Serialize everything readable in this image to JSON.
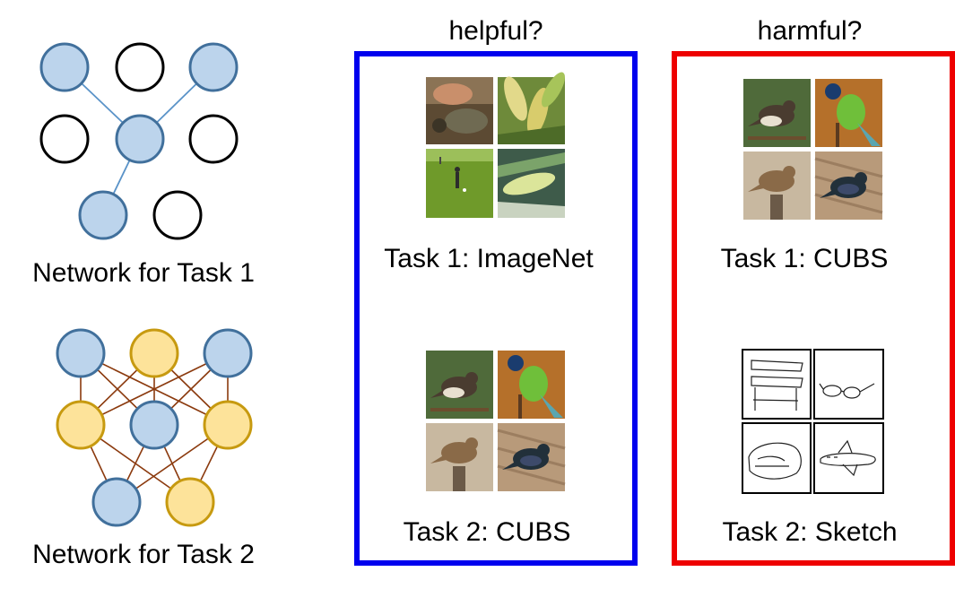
{
  "network1": {
    "caption": "Network for Task 1",
    "node_states": [
      [
        "blue",
        "white",
        "blue"
      ],
      [
        "white",
        "blue",
        "white"
      ],
      [
        "blue",
        "white"
      ]
    ],
    "edges": [
      [
        [
          0,
          0
        ],
        [
          1,
          1
        ]
      ],
      [
        [
          0,
          2
        ],
        [
          1,
          1
        ]
      ],
      [
        [
          1,
          1
        ],
        [
          2,
          0
        ]
      ]
    ]
  },
  "network2": {
    "caption": "Network for Task 2",
    "node_states": [
      [
        "blue",
        "yellow",
        "blue"
      ],
      [
        "yellow",
        "blue",
        "yellow"
      ],
      [
        "blue",
        "yellow"
      ]
    ]
  },
  "panels": {
    "helpful": {
      "heading": "helpful?",
      "task1": "Task 1: ImageNet",
      "task2": "Task 2: CUBS",
      "border_color": "#0000ee"
    },
    "harmful": {
      "heading": "harmful?",
      "task1": "Task 1: CUBS",
      "task2": "Task 2: Sketch",
      "border_color": "#ee0000"
    }
  },
  "colors": {
    "blue_fill": "#bcd4ec",
    "blue_stroke": "#41709c",
    "yellow_fill": "#fde39a",
    "yellow_stroke": "#c79a10",
    "edge1": "#5a93c8",
    "edge2": "#8b3a0e"
  }
}
